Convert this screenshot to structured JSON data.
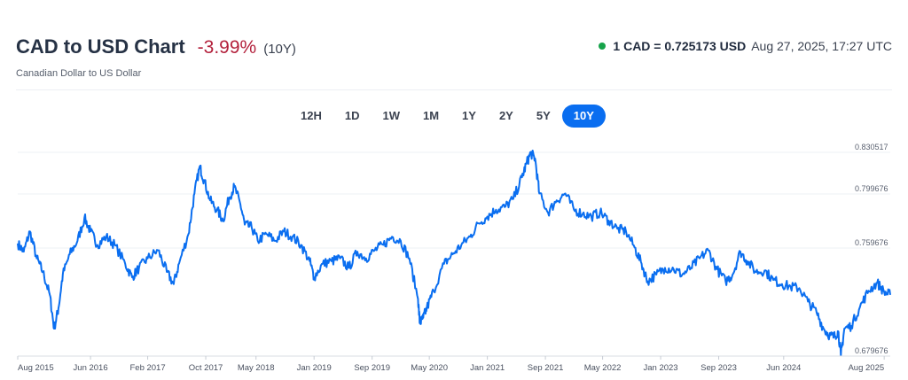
{
  "header": {
    "title": "CAD to USD Chart",
    "change": "-3.99%",
    "period": "(10Y)",
    "subtitle": "Canadian Dollar to US Dollar",
    "rate": "1 CAD = 0.725173 USD",
    "timestamp": "Aug 27, 2025, 17:27 UTC",
    "status_color": "#16a34a"
  },
  "tabs": [
    {
      "label": "12H",
      "active": false
    },
    {
      "label": "1D",
      "active": false
    },
    {
      "label": "1W",
      "active": false
    },
    {
      "label": "1M",
      "active": false
    },
    {
      "label": "1Y",
      "active": false
    },
    {
      "label": "2Y",
      "active": false
    },
    {
      "label": "5Y",
      "active": false
    },
    {
      "label": "10Y",
      "active": true
    }
  ],
  "colors": {
    "line": "#0a6ef0",
    "negative": "#b3213c",
    "accent": "#0a6ef0"
  },
  "chart_data": {
    "type": "line",
    "title": "",
    "xlabel": "",
    "ylabel": "",
    "y_ticks": [
      "0.830517",
      "0.799676",
      "0.759676",
      "0.679676"
    ],
    "y_tick_values": [
      0.830517,
      0.799676,
      0.759676,
      0.679676
    ],
    "ylim": [
      0.679676,
      0.830517
    ],
    "x_ticks": [
      "Aug 2015",
      "Jun 2016",
      "Feb 2017",
      "Oct 2017",
      "May 2018",
      "Jan 2019",
      "Sep 2019",
      "May 2020",
      "Jan 2021",
      "Sep 2021",
      "May 2022",
      "Jan 2023",
      "Sep 2023",
      "Jun 2024",
      "Aug 2025"
    ],
    "x_tick_values": [
      2015.58,
      2016.42,
      2017.08,
      2017.75,
      2018.33,
      2019.0,
      2019.67,
      2020.33,
      2021.0,
      2021.67,
      2022.33,
      2023.0,
      2023.67,
      2024.42,
      2025.58
    ],
    "xlim": [
      2015.58,
      2025.65
    ],
    "grid": true,
    "series": [
      {
        "x": [
          2015.58,
          2015.65,
          2015.72,
          2015.8,
          2015.87,
          2015.95,
          2016.0,
          2016.05,
          2016.1,
          2016.18,
          2016.27,
          2016.35,
          2016.42,
          2016.5,
          2016.6,
          2016.7,
          2016.82,
          2016.9,
          2016.98,
          2017.08,
          2017.2,
          2017.3,
          2017.38,
          2017.45,
          2017.55,
          2017.62,
          2017.68,
          2017.73,
          2017.8,
          2017.88,
          2017.95,
          2018.02,
          2018.08,
          2018.15,
          2018.2,
          2018.28,
          2018.35,
          2018.45,
          2018.55,
          2018.65,
          2018.75,
          2018.85,
          2018.95,
          2019.0,
          2019.1,
          2019.2,
          2019.3,
          2019.4,
          2019.5,
          2019.6,
          2019.7,
          2019.8,
          2019.9,
          2020.0,
          2020.1,
          2020.2,
          2020.22,
          2020.26,
          2020.3,
          2020.38,
          2020.5,
          2020.6,
          2020.7,
          2020.8,
          2020.9,
          2021.0,
          2021.1,
          2021.2,
          2021.3,
          2021.4,
          2021.45,
          2021.5,
          2021.55,
          2021.6,
          2021.7,
          2021.8,
          2021.9,
          2022.0,
          2022.1,
          2022.2,
          2022.3,
          2022.4,
          2022.5,
          2022.6,
          2022.7,
          2022.78,
          2022.85,
          2022.95,
          2023.05,
          2023.15,
          2023.25,
          2023.35,
          2023.45,
          2023.55,
          2023.65,
          2023.75,
          2023.83,
          2023.92,
          2024.0,
          2024.1,
          2024.2,
          2024.3,
          2024.4,
          2024.5,
          2024.6,
          2024.7,
          2024.8,
          2024.88,
          2024.95,
          2025.0,
          2025.05,
          2025.08,
          2025.12,
          2025.2,
          2025.3,
          2025.4,
          2025.5,
          2025.58,
          2025.65
        ],
        "y": [
          0.763,
          0.757,
          0.772,
          0.752,
          0.742,
          0.725,
          0.7,
          0.715,
          0.74,
          0.755,
          0.765,
          0.782,
          0.772,
          0.762,
          0.768,
          0.762,
          0.748,
          0.738,
          0.745,
          0.752,
          0.758,
          0.742,
          0.733,
          0.75,
          0.77,
          0.8,
          0.82,
          0.81,
          0.795,
          0.788,
          0.78,
          0.797,
          0.805,
          0.792,
          0.777,
          0.775,
          0.765,
          0.77,
          0.765,
          0.772,
          0.768,
          0.762,
          0.75,
          0.738,
          0.748,
          0.75,
          0.752,
          0.745,
          0.757,
          0.752,
          0.758,
          0.762,
          0.768,
          0.765,
          0.752,
          0.722,
          0.704,
          0.708,
          0.715,
          0.728,
          0.748,
          0.755,
          0.762,
          0.768,
          0.778,
          0.783,
          0.788,
          0.79,
          0.796,
          0.812,
          0.822,
          0.83,
          0.826,
          0.8,
          0.786,
          0.795,
          0.8,
          0.788,
          0.785,
          0.783,
          0.786,
          0.78,
          0.774,
          0.772,
          0.76,
          0.748,
          0.735,
          0.74,
          0.745,
          0.744,
          0.74,
          0.745,
          0.752,
          0.758,
          0.744,
          0.735,
          0.74,
          0.757,
          0.75,
          0.742,
          0.743,
          0.736,
          0.733,
          0.731,
          0.73,
          0.72,
          0.712,
          0.7,
          0.695,
          0.694,
          0.698,
          0.68,
          0.7,
          0.702,
          0.716,
          0.728,
          0.734,
          0.727,
          0.725
        ]
      }
    ]
  }
}
